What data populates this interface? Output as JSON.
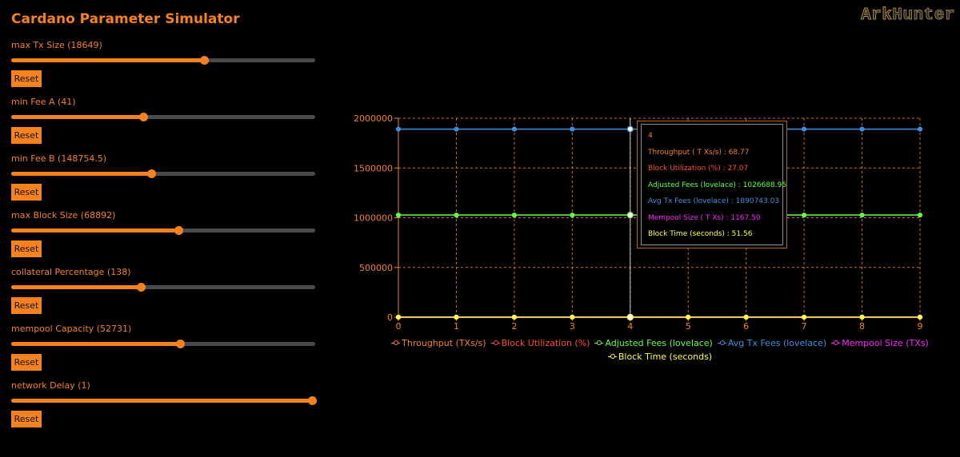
{
  "app": {
    "title": "Cardano Parameter Simulator",
    "logo_part1": "Ark",
    "logo_part2": "Hunter"
  },
  "params": [
    {
      "label": "max Tx Size (18649)",
      "fraction": 0.635,
      "reset_label": "Reset"
    },
    {
      "label": "min Fee A (41)",
      "fraction": 0.435,
      "reset_label": "Reset"
    },
    {
      "label": "min Fee B (148754.5)",
      "fraction": 0.46,
      "reset_label": "Reset"
    },
    {
      "label": "max Block Size (68892)",
      "fraction": 0.55,
      "reset_label": "Reset"
    },
    {
      "label": "collateral Percentage (138)",
      "fraction": 0.425,
      "reset_label": "Reset"
    },
    {
      "label": "mempool Capacity (52731)",
      "fraction": 0.555,
      "reset_label": "Reset"
    },
    {
      "label": "network Delay (1)",
      "fraction": 0.99,
      "reset_label": "Reset"
    }
  ],
  "colors": {
    "accent": "#f5821f",
    "grid": "#f5821f",
    "throughput": "#f5821f",
    "block_utilization": "#ff4d2e",
    "adjusted_fees": "#66ff44",
    "avg_tx_fees": "#3d8fe0",
    "mempool_size": "#ff22ff",
    "block_time": "#ffff44"
  },
  "tooltip": {
    "title": "4",
    "rows": [
      {
        "text": "Throughput ( T Xs/s) : 68.77",
        "color": "#f5821f"
      },
      {
        "text": "Block Utilization (%) : 27.07",
        "color": "#ff4d2e"
      },
      {
        "text": "Adjusted Fees (lovelace) : 1026688.95",
        "color": "#66ff44"
      },
      {
        "text": "Avg Tx Fees (lovelace) : 1890743.03",
        "color": "#3d8fe0"
      },
      {
        "text": "Mempool Size ( T Xs) : 1167.50",
        "color": "#ff22ff"
      },
      {
        "text": "Block Time (seconds) : 51.56",
        "color": "#ffff44"
      }
    ]
  },
  "chart_data": {
    "type": "line",
    "x": [
      0,
      1,
      2,
      3,
      4,
      5,
      6,
      7,
      8,
      9
    ],
    "ylim": [
      0,
      2000000
    ],
    "y_ticks": [
      "0",
      "500000",
      "1000000",
      "1500000",
      "2000000"
    ],
    "x_ticks": [
      "0",
      "1",
      "2",
      "3",
      "4",
      "5",
      "6",
      "7",
      "8",
      "9"
    ],
    "grid": true,
    "legend_position": "bottom",
    "active_x": 4,
    "series": [
      {
        "name": "Throughput (TXs/s)",
        "color": "#f5821f",
        "values": [
          68.77,
          68.77,
          68.77,
          68.77,
          68.77,
          68.77,
          68.77,
          68.77,
          68.77,
          68.77
        ]
      },
      {
        "name": "Block Utilization (%)",
        "color": "#ff4d2e",
        "values": [
          27.07,
          27.07,
          27.07,
          27.07,
          27.07,
          27.07,
          27.07,
          27.07,
          27.07,
          27.07
        ]
      },
      {
        "name": "Adjusted Fees (lovelace)",
        "color": "#66ff44",
        "values": [
          1026688.95,
          1026688.95,
          1026688.95,
          1026688.95,
          1026688.95,
          1026688.95,
          1026688.95,
          1026688.95,
          1026688.95,
          1026688.95
        ]
      },
      {
        "name": "Avg Tx Fees (lovelace)",
        "color": "#3d8fe0",
        "values": [
          1890743.03,
          1890743.03,
          1890743.03,
          1890743.03,
          1890743.03,
          1890743.03,
          1890743.03,
          1890743.03,
          1890743.03,
          1890743.03
        ]
      },
      {
        "name": "Mempool Size (TXs)",
        "color": "#ff22ff",
        "values": [
          1167.5,
          1167.5,
          1167.5,
          1167.5,
          1167.5,
          1167.5,
          1167.5,
          1167.5,
          1167.5,
          1167.5
        ]
      },
      {
        "name": "Block Time (seconds)",
        "color": "#ffff44",
        "values": [
          51.56,
          51.56,
          51.56,
          51.56,
          51.56,
          51.56,
          51.56,
          51.56,
          51.56,
          51.56
        ]
      }
    ]
  }
}
